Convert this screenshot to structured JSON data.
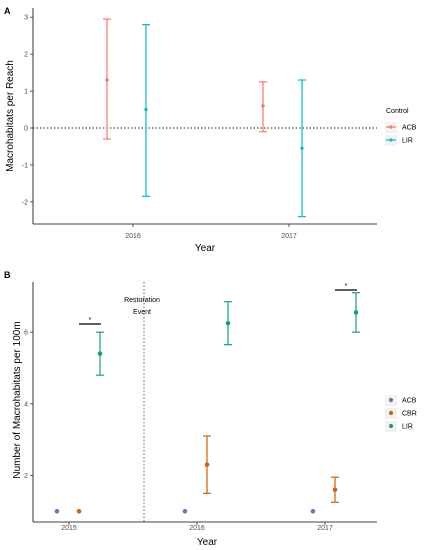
{
  "chart_data": [
    {
      "panel_label": "A",
      "type": "scatter",
      "subtype": "point-range",
      "xlabel": "Year",
      "ylabel": "Macrohabitats per Reach",
      "categories": [
        "2016",
        "2017"
      ],
      "yticks": [
        "-2",
        "-1",
        "0",
        "1",
        "2",
        "3"
      ],
      "ylim": [
        -2.6,
        3.25
      ],
      "reference_line": {
        "y": 0,
        "style": "dotted"
      },
      "legend": {
        "title": "Control",
        "position": "right"
      },
      "series": [
        {
          "name": "ACB",
          "color": "#f8766d",
          "points": [
            {
              "x": "2016",
              "y": 1.3,
              "low": -0.3,
              "high": 2.95
            },
            {
              "x": "2017",
              "y": 0.6,
              "low": -0.1,
              "high": 1.25
            }
          ]
        },
        {
          "name": "LIR",
          "color": "#00bfc4",
          "points": [
            {
              "x": "2016",
              "y": 0.5,
              "low": -1.85,
              "high": 2.8
            },
            {
              "x": "2017",
              "y": -0.55,
              "low": -2.4,
              "high": 1.3
            }
          ]
        }
      ]
    },
    {
      "panel_label": "B",
      "type": "scatter",
      "subtype": "point-range",
      "xlabel": "Year",
      "ylabel": "Number of Macrohabitats per 100m",
      "categories": [
        "2015",
        "2016",
        "2017"
      ],
      "yticks": [
        "2",
        "4",
        "6"
      ],
      "ylim": [
        0.7,
        7.4
      ],
      "annotations": [
        {
          "text": "Restoration",
          "line": 1
        },
        {
          "text": "Event",
          "line": 2
        },
        {
          "text": "*",
          "at": "2015"
        },
        {
          "text": "*",
          "at": "2017"
        }
      ],
      "legend": {
        "position": "right"
      },
      "series": [
        {
          "name": "ACB",
          "color": "#7570b3",
          "points": [
            {
              "x": "2015",
              "y": 1.0
            },
            {
              "x": "2016",
              "y": 1.0
            },
            {
              "x": "2017",
              "y": 1.0
            }
          ]
        },
        {
          "name": "CBR",
          "color": "#d95f02",
          "points": [
            {
              "x": "2015",
              "y": 1.0
            },
            {
              "x": "2016",
              "y": 2.3,
              "low": 1.5,
              "high": 3.1
            },
            {
              "x": "2017",
              "y": 1.6,
              "low": 1.25,
              "high": 1.95
            }
          ]
        },
        {
          "name": "LIR",
          "color": "#1b9e77",
          "points": [
            {
              "x": "2015",
              "y": 5.4,
              "low": 4.8,
              "high": 6.0
            },
            {
              "x": "2016",
              "y": 6.25,
              "low": 5.65,
              "high": 6.85
            },
            {
              "x": "2017",
              "y": 6.55,
              "low": 6.0,
              "high": 7.1
            }
          ]
        }
      ]
    }
  ]
}
